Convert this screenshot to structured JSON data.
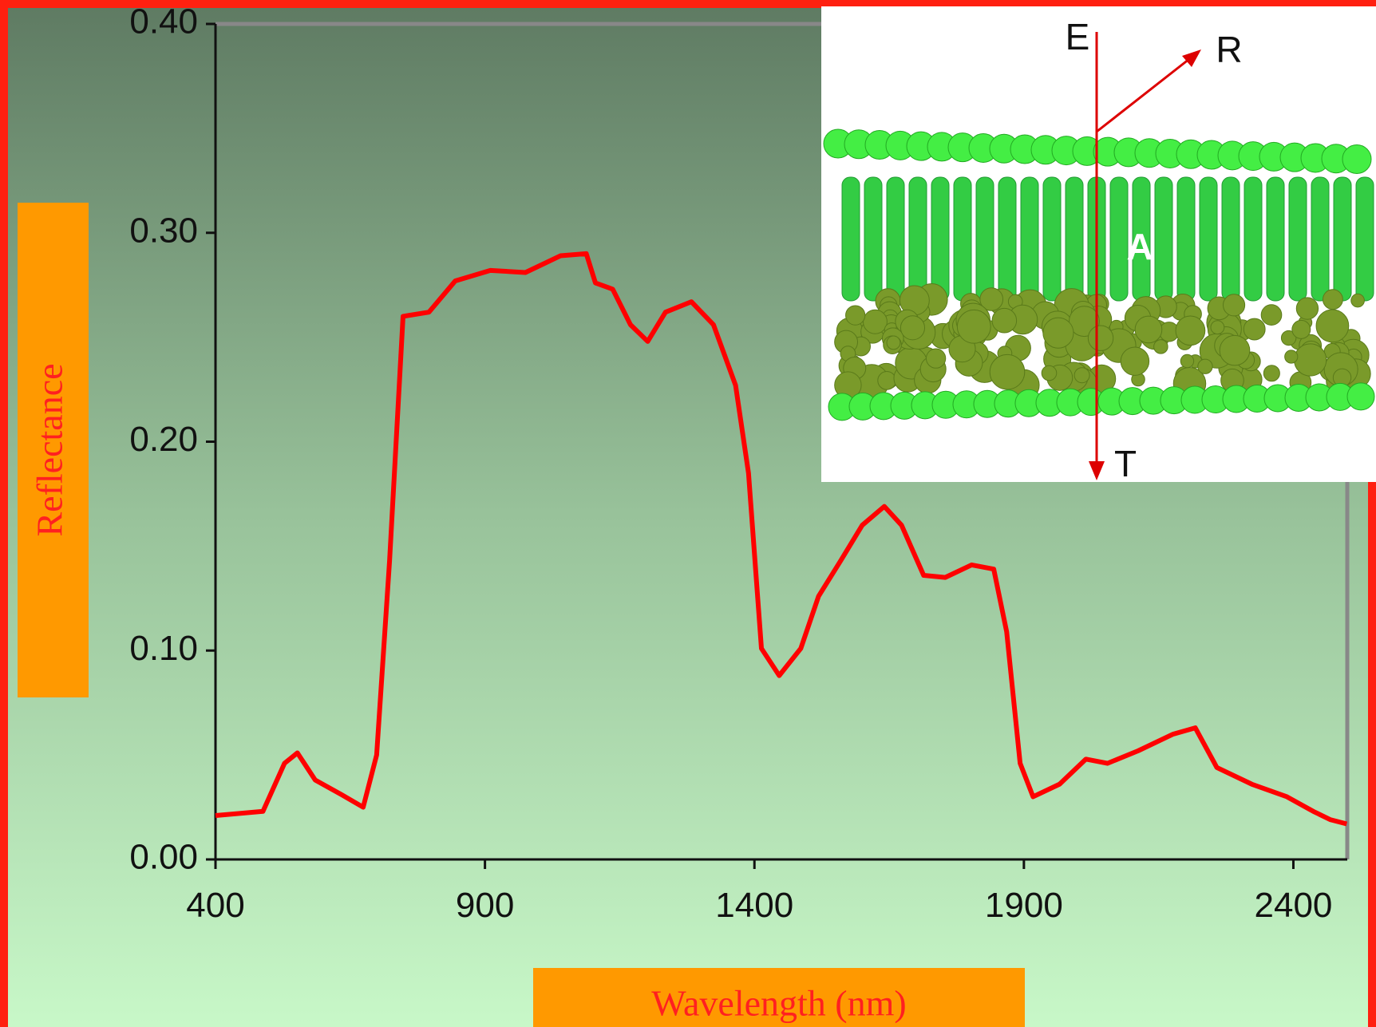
{
  "chart_data": {
    "type": "line",
    "x_label": "Wavelength (nm)",
    "y_label": "Reflectance",
    "annotations": [
      "E",
      "R",
      "T",
      "A"
    ],
    "x": [
      400,
      488,
      528,
      552,
      585,
      634,
      674,
      699,
      723,
      748,
      796,
      845,
      910,
      975,
      1040,
      1088,
      1105,
      1137,
      1170,
      1202,
      1235,
      1283,
      1324,
      1365,
      1389,
      1413,
      1446,
      1486,
      1519,
      1560,
      1600,
      1641,
      1673,
      1714,
      1754,
      1803,
      1844,
      1868,
      1893,
      1917,
      1966,
      2015,
      2055,
      2112,
      2177,
      2218,
      2258,
      2323,
      2388,
      2437,
      2469,
      2499
    ],
    "series": [
      {
        "color": "#ff0000",
        "values": [
          0.021,
          0.023,
          0.046,
          0.051,
          0.038,
          0.031,
          0.025,
          0.05,
          0.143,
          0.26,
          0.262,
          0.277,
          0.282,
          0.281,
          0.289,
          0.29,
          0.276,
          0.273,
          0.256,
          0.248,
          0.262,
          0.267,
          0.256,
          0.227,
          0.185,
          0.101,
          0.088,
          0.101,
          0.126,
          0.143,
          0.16,
          0.169,
          0.16,
          0.136,
          0.135,
          0.141,
          0.139,
          0.109,
          0.046,
          0.03,
          0.036,
          0.048,
          0.046,
          0.052,
          0.06,
          0.063,
          0.044,
          0.036,
          0.03,
          0.023,
          0.019,
          0.017
        ]
      }
    ],
    "xlim": [
      400,
      2500
    ],
    "xticks": [
      400,
      900,
      1400,
      1900,
      2400
    ],
    "ylim": [
      0,
      0.4
    ],
    "yticks": [
      {
        "value": 0,
        "label": "0.00"
      },
      {
        "value": 0.1,
        "label": "0.10"
      },
      {
        "value": 0.2,
        "label": "0.20"
      },
      {
        "value": 0.3,
        "label": "0.30"
      },
      {
        "value": 0.4,
        "label": "0.40"
      }
    ]
  }
}
